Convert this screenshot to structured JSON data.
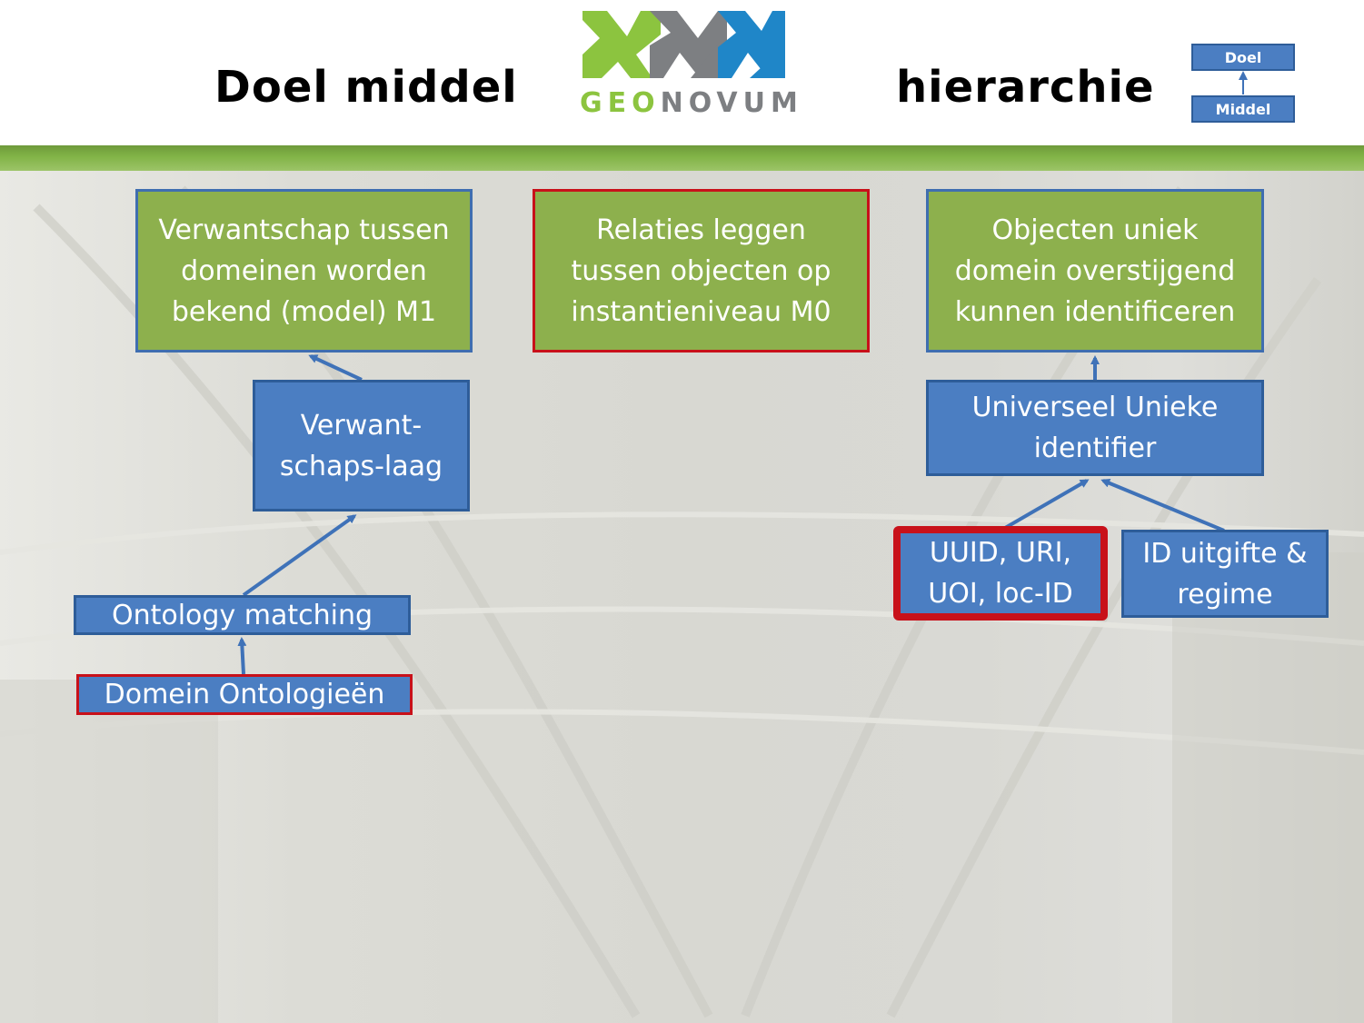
{
  "header": {
    "title_left": "Doel middel",
    "title_right": "hierarchie"
  },
  "logo": {
    "text_geo": "GEO",
    "text_novum": "NOVUM",
    "colors": {
      "green": "#8cc43f",
      "gray": "#7d7f82",
      "blue": "#1f86c8"
    }
  },
  "legend": {
    "top_label": "Doel",
    "bottom_label": "Middel"
  },
  "colors": {
    "goal_fill": "#8db04d",
    "means_fill": "#4b7ec2",
    "border_blue": "#3f6eb0",
    "highlight_red": "#c8111a",
    "band_green": "#82b447",
    "arrow": "#3f72b8"
  },
  "goals": [
    {
      "text": "Verwantschap tussen\ndomeinen worden\nbekend (model) M1"
    },
    {
      "text": "Relaties leggen\ntussen objecten op\ninstantieniveau M0"
    },
    {
      "text": "Objecten uniek\ndomein overstijgend\nkunnen identificeren"
    }
  ],
  "means": {
    "verwantschap": "Verwant-\nschaps-laag",
    "ontology_matching": "Ontology matching",
    "domein_ontologieen": "Domein Ontologieën",
    "universeel": "Universeel Unieke\nidentifier",
    "uuid": "UUID, URI,\nUOI, loc-ID",
    "id_uitgifte": "ID uitgifte &\nregime"
  }
}
